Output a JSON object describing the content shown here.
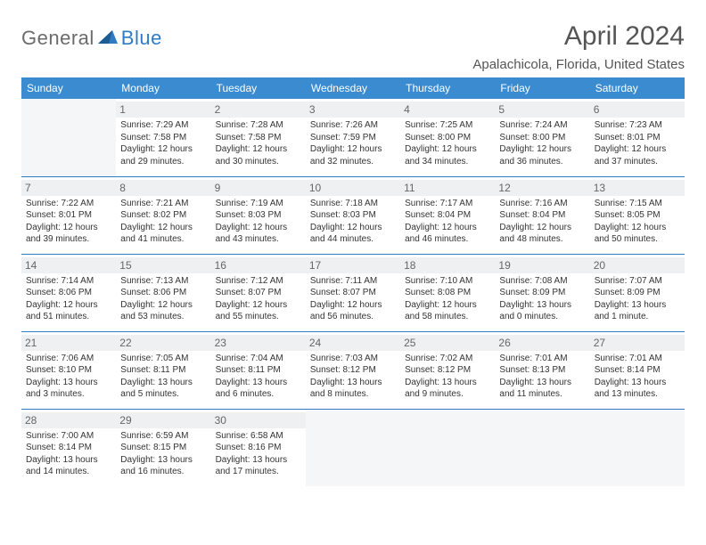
{
  "brand": {
    "part1": "General",
    "part2": "Blue"
  },
  "title": "April 2024",
  "location": "Apalachicola, Florida, United States",
  "colors": {
    "header_bg": "#3b8bd0",
    "header_text": "#ffffff",
    "rule": "#2f7cc4",
    "daynum_bg": "#eef0f1",
    "empty_bg": "#f5f6f7",
    "text": "#333333",
    "logo_gray": "#6b6b6b",
    "logo_blue": "#2f7cc4"
  },
  "weekdays": [
    "Sunday",
    "Monday",
    "Tuesday",
    "Wednesday",
    "Thursday",
    "Friday",
    "Saturday"
  ],
  "weeks": [
    [
      null,
      {
        "n": "1",
        "sunrise": "7:29 AM",
        "sunset": "7:58 PM",
        "daylight": "12 hours and 29 minutes."
      },
      {
        "n": "2",
        "sunrise": "7:28 AM",
        "sunset": "7:58 PM",
        "daylight": "12 hours and 30 minutes."
      },
      {
        "n": "3",
        "sunrise": "7:26 AM",
        "sunset": "7:59 PM",
        "daylight": "12 hours and 32 minutes."
      },
      {
        "n": "4",
        "sunrise": "7:25 AM",
        "sunset": "8:00 PM",
        "daylight": "12 hours and 34 minutes."
      },
      {
        "n": "5",
        "sunrise": "7:24 AM",
        "sunset": "8:00 PM",
        "daylight": "12 hours and 36 minutes."
      },
      {
        "n": "6",
        "sunrise": "7:23 AM",
        "sunset": "8:01 PM",
        "daylight": "12 hours and 37 minutes."
      }
    ],
    [
      {
        "n": "7",
        "sunrise": "7:22 AM",
        "sunset": "8:01 PM",
        "daylight": "12 hours and 39 minutes."
      },
      {
        "n": "8",
        "sunrise": "7:21 AM",
        "sunset": "8:02 PM",
        "daylight": "12 hours and 41 minutes."
      },
      {
        "n": "9",
        "sunrise": "7:19 AM",
        "sunset": "8:03 PM",
        "daylight": "12 hours and 43 minutes."
      },
      {
        "n": "10",
        "sunrise": "7:18 AM",
        "sunset": "8:03 PM",
        "daylight": "12 hours and 44 minutes."
      },
      {
        "n": "11",
        "sunrise": "7:17 AM",
        "sunset": "8:04 PM",
        "daylight": "12 hours and 46 minutes."
      },
      {
        "n": "12",
        "sunrise": "7:16 AM",
        "sunset": "8:04 PM",
        "daylight": "12 hours and 48 minutes."
      },
      {
        "n": "13",
        "sunrise": "7:15 AM",
        "sunset": "8:05 PM",
        "daylight": "12 hours and 50 minutes."
      }
    ],
    [
      {
        "n": "14",
        "sunrise": "7:14 AM",
        "sunset": "8:06 PM",
        "daylight": "12 hours and 51 minutes."
      },
      {
        "n": "15",
        "sunrise": "7:13 AM",
        "sunset": "8:06 PM",
        "daylight": "12 hours and 53 minutes."
      },
      {
        "n": "16",
        "sunrise": "7:12 AM",
        "sunset": "8:07 PM",
        "daylight": "12 hours and 55 minutes."
      },
      {
        "n": "17",
        "sunrise": "7:11 AM",
        "sunset": "8:07 PM",
        "daylight": "12 hours and 56 minutes."
      },
      {
        "n": "18",
        "sunrise": "7:10 AM",
        "sunset": "8:08 PM",
        "daylight": "12 hours and 58 minutes."
      },
      {
        "n": "19",
        "sunrise": "7:08 AM",
        "sunset": "8:09 PM",
        "daylight": "13 hours and 0 minutes."
      },
      {
        "n": "20",
        "sunrise": "7:07 AM",
        "sunset": "8:09 PM",
        "daylight": "13 hours and 1 minute."
      }
    ],
    [
      {
        "n": "21",
        "sunrise": "7:06 AM",
        "sunset": "8:10 PM",
        "daylight": "13 hours and 3 minutes."
      },
      {
        "n": "22",
        "sunrise": "7:05 AM",
        "sunset": "8:11 PM",
        "daylight": "13 hours and 5 minutes."
      },
      {
        "n": "23",
        "sunrise": "7:04 AM",
        "sunset": "8:11 PM",
        "daylight": "13 hours and 6 minutes."
      },
      {
        "n": "24",
        "sunrise": "7:03 AM",
        "sunset": "8:12 PM",
        "daylight": "13 hours and 8 minutes."
      },
      {
        "n": "25",
        "sunrise": "7:02 AM",
        "sunset": "8:12 PM",
        "daylight": "13 hours and 9 minutes."
      },
      {
        "n": "26",
        "sunrise": "7:01 AM",
        "sunset": "8:13 PM",
        "daylight": "13 hours and 11 minutes."
      },
      {
        "n": "27",
        "sunrise": "7:01 AM",
        "sunset": "8:14 PM",
        "daylight": "13 hours and 13 minutes."
      }
    ],
    [
      {
        "n": "28",
        "sunrise": "7:00 AM",
        "sunset": "8:14 PM",
        "daylight": "13 hours and 14 minutes."
      },
      {
        "n": "29",
        "sunrise": "6:59 AM",
        "sunset": "8:15 PM",
        "daylight": "13 hours and 16 minutes."
      },
      {
        "n": "30",
        "sunrise": "6:58 AM",
        "sunset": "8:16 PM",
        "daylight": "13 hours and 17 minutes."
      },
      null,
      null,
      null,
      null
    ]
  ],
  "labels": {
    "sunrise": "Sunrise:",
    "sunset": "Sunset:",
    "daylight": "Daylight:"
  }
}
